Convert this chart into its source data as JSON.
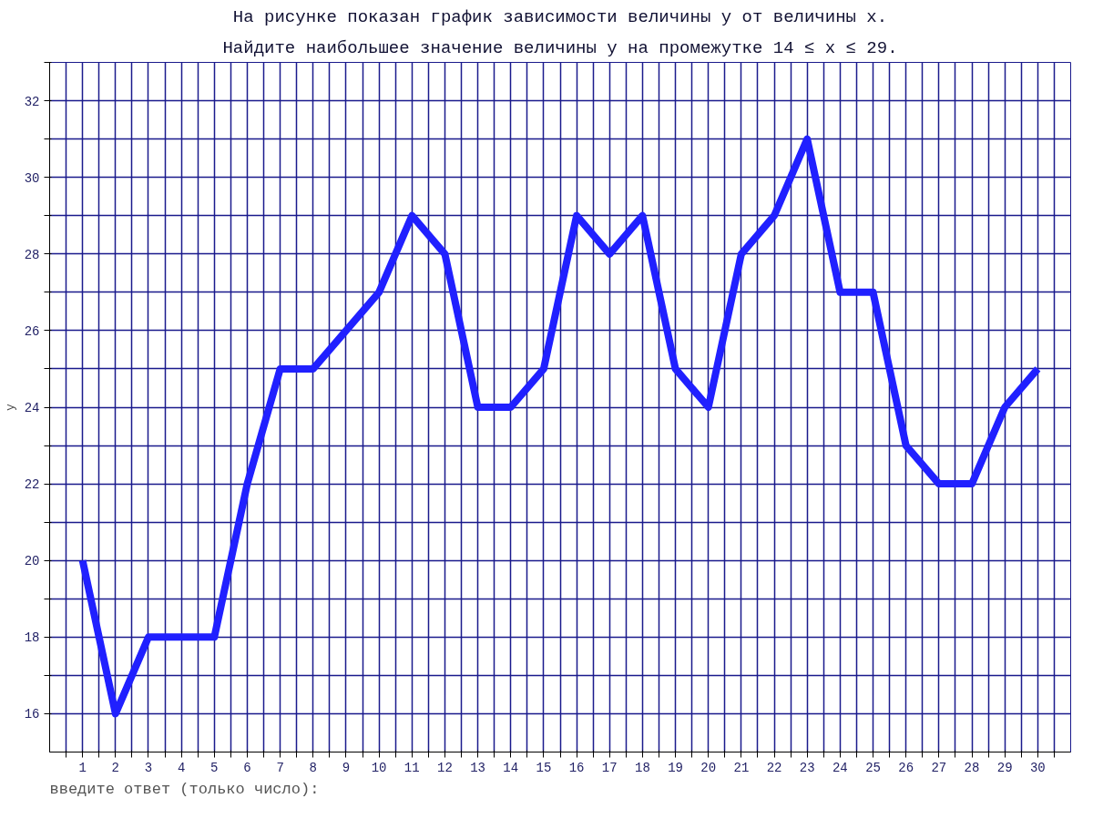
{
  "chart_data": {
    "type": "line",
    "title": "На рисунке показан график зависимости величины y от величины x.",
    "subtitle": "Найдите наибольшее значение величины y на промежутке 14 ≤ x ≤ 29.",
    "ylabel": "y",
    "x": [
      1,
      2,
      3,
      4,
      5,
      6,
      7,
      8,
      9,
      10,
      11,
      12,
      13,
      14,
      15,
      16,
      17,
      18,
      19,
      20,
      21,
      22,
      23,
      24,
      25,
      26,
      27,
      28,
      29,
      30
    ],
    "series": [
      {
        "color": "#2020ff",
        "values": [
          20,
          16,
          18,
          18,
          18,
          22,
          25,
          25,
          26,
          27,
          29,
          28,
          24,
          24,
          25,
          29,
          28,
          29,
          25,
          24,
          28,
          29,
          31,
          27,
          27,
          23,
          22,
          22,
          24,
          25
        ]
      }
    ],
    "xlim": [
      0,
      31
    ],
    "ylim": [
      15,
      33
    ],
    "xticks": [
      {
        "value": 0.5,
        "label": null
      },
      1,
      {
        "value": 1.5,
        "label": null
      },
      2,
      {
        "value": 2.5,
        "label": null
      },
      3,
      {
        "value": 3.5,
        "label": null
      },
      4,
      {
        "value": 4.5,
        "label": null
      },
      5,
      {
        "value": 5.5,
        "label": null
      },
      6,
      {
        "value": 6.5,
        "label": null
      },
      7,
      {
        "value": 7.5,
        "label": null
      },
      8,
      {
        "value": 8.5,
        "label": null
      },
      9,
      {
        "value": 9.5,
        "label": null
      },
      10,
      {
        "value": 10.5,
        "label": null
      },
      11,
      {
        "value": 11.5,
        "label": null
      },
      12,
      {
        "value": 12.5,
        "label": null
      },
      13,
      {
        "value": 13.5,
        "label": null
      },
      14,
      {
        "value": 14.5,
        "label": null
      },
      15,
      {
        "value": 15.5,
        "label": null
      },
      16,
      {
        "value": 16.5,
        "label": null
      },
      17,
      {
        "value": 17.5,
        "label": null
      },
      18,
      {
        "value": 18.5,
        "label": null
      },
      19,
      {
        "value": 19.5,
        "label": null
      },
      20,
      {
        "value": 20.5,
        "label": null
      },
      21,
      {
        "value": 21.5,
        "label": null
      },
      22,
      {
        "value": 22.5,
        "label": null
      },
      23,
      {
        "value": 23.5,
        "label": null
      },
      24,
      {
        "value": 24.5,
        "label": null
      },
      25,
      {
        "value": 25.5,
        "label": null
      },
      26,
      {
        "value": 26.5,
        "label": null
      },
      27,
      {
        "value": 27.5,
        "label": null
      },
      28,
      {
        "value": 28.5,
        "label": null
      },
      29,
      {
        "value": 29.5,
        "label": null
      },
      30,
      {
        "value": 30.5,
        "label": null
      }
    ],
    "yticks": [
      16,
      {
        "value": 17,
        "label": null
      },
      18,
      {
        "value": 19,
        "label": null
      },
      20,
      {
        "value": 21,
        "label": null
      },
      22,
      {
        "value": 23,
        "label": null
      },
      24,
      {
        "value": 25,
        "label": null
      },
      26,
      {
        "value": 27,
        "label": null
      },
      28,
      {
        "value": 29,
        "label": null
      },
      30,
      {
        "value": 31,
        "label": null
      },
      32,
      {
        "value": 33,
        "label": null
      }
    ],
    "grid": true,
    "line_style": "solid",
    "annotations": [
      "введите ответ (только число):"
    ]
  }
}
